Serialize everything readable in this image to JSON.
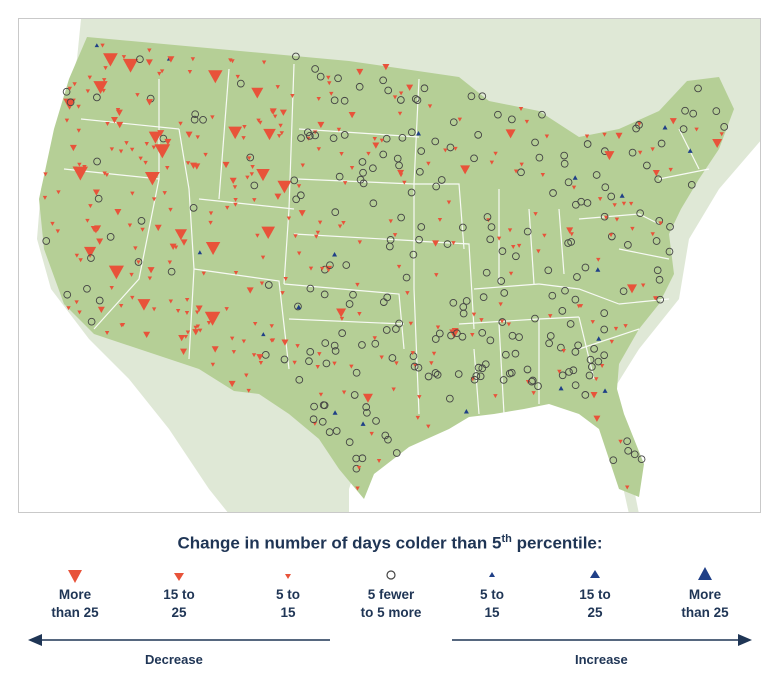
{
  "legend": {
    "title": "Change in number of days colder than 5",
    "title_sup": "th",
    "title_suffix": " percentile:",
    "items": [
      {
        "label": "More\nthan 25",
        "symbol": "triangle-down-large",
        "color": "#e8533a"
      },
      {
        "label": "15 to\n25",
        "symbol": "triangle-down-medium",
        "color": "#e8533a"
      },
      {
        "label": "5 to\n15",
        "symbol": "triangle-down-small",
        "color": "#e8533a"
      },
      {
        "label": "5 fewer\nto 5 more",
        "symbol": "circle-open",
        "color": "#444444"
      },
      {
        "label": "5 to\n15",
        "symbol": "triangle-up-small",
        "color": "#1f3f87"
      },
      {
        "label": "15 to\n25",
        "symbol": "triangle-up-medium",
        "color": "#1f3f87"
      },
      {
        "label": "More\nthan 25",
        "symbol": "triangle-up-large",
        "color": "#1f3f87"
      }
    ],
    "decrease_label": "Decrease",
    "increase_label": "Increase"
  },
  "colors": {
    "land_us": "#b5cf96",
    "land_other": "#dfe8d6",
    "water": "#ffffff",
    "borders": "#ffffff",
    "decrease": "#e8533a",
    "increase": "#1f3f87",
    "no_change": "#444444",
    "legend_text": "#1f3555"
  },
  "map": {
    "region": "contiguous United States",
    "station_symbols": "triangles and circles by station"
  }
}
